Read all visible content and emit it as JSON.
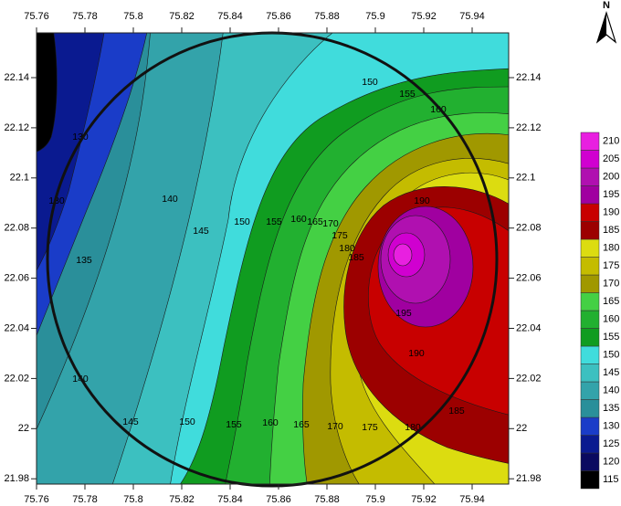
{
  "north": "N",
  "map": {
    "xticks": [
      75.76,
      75.78,
      75.8,
      75.82,
      75.84,
      75.86,
      75.88,
      75.9,
      75.92,
      75.94
    ],
    "yticks": [
      22.14,
      22.12,
      22.1,
      22.08,
      22.06,
      22.04,
      22.02,
      22,
      21.98
    ],
    "levels": [
      115,
      120,
      125,
      130,
      135,
      140,
      145,
      150,
      155,
      160,
      165,
      170,
      175,
      180,
      185,
      190,
      195,
      200,
      205,
      210
    ],
    "colors": [
      "#000000",
      "#0a0a60",
      "#0a1a90",
      "#1a3cc8",
      "#2a8f9a",
      "#33a3aa",
      "#3cc0c0",
      "#40dcdc",
      "#109c20",
      "#22b030",
      "#44d044",
      "#a09800",
      "#c4bc00",
      "#dcdc10",
      "#9c0000",
      "#c80000",
      "#a000a0",
      "#b010b0",
      "#d000d0",
      "#e820e0"
    ],
    "contour_labels": [
      150,
      155,
      160,
      140,
      145,
      150,
      155,
      160,
      165,
      170,
      175,
      180,
      185,
      190,
      130,
      130,
      135,
      140,
      195,
      190,
      185,
      180,
      175,
      170,
      165,
      160,
      155,
      150,
      145
    ]
  }
}
